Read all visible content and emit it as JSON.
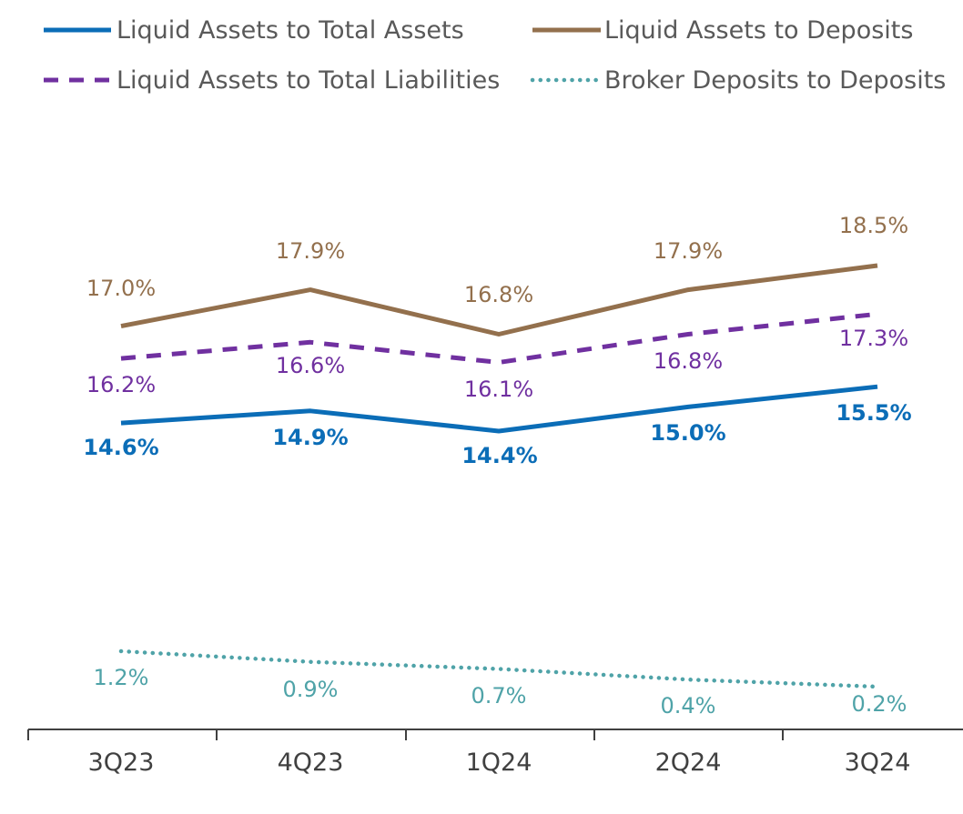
{
  "chart_data": {
    "type": "line",
    "categories": [
      "3Q23",
      "4Q23",
      "1Q24",
      "2Q24",
      "3Q24"
    ],
    "series": [
      {
        "name": "Liquid Assets to Total Assets",
        "values": [
          14.6,
          14.9,
          14.4,
          15.0,
          15.5
        ],
        "labels": [
          "14.6%",
          "14.9%",
          "14.4%",
          "15.0%",
          "15.5%"
        ],
        "color": "#0b6db7",
        "line_style": "solid",
        "label_weight": "bold"
      },
      {
        "name": "Liquid Assets to Deposits",
        "values": [
          17.0,
          17.9,
          16.8,
          17.9,
          18.5
        ],
        "labels": [
          "17.0%",
          "17.9%",
          "16.8%",
          "17.9%",
          "18.5%"
        ],
        "color": "#93704d",
        "line_style": "solid",
        "label_weight": "normal"
      },
      {
        "name": "Liquid Assets to Total Liabilities",
        "values": [
          16.2,
          16.6,
          16.1,
          16.8,
          17.3
        ],
        "labels": [
          "16.2%",
          "16.6%",
          "16.1%",
          "16.8%",
          "17.3%"
        ],
        "color": "#7030a0",
        "line_style": "dashed",
        "label_weight": "normal"
      },
      {
        "name": "Broker Deposits to Deposits",
        "values": [
          1.2,
          0.9,
          0.7,
          0.4,
          0.2
        ],
        "labels": [
          "1.2%",
          "0.9%",
          "0.7%",
          "0.4%",
          "0.2%"
        ],
        "color": "#4fa3a8",
        "line_style": "dotted",
        "label_weight": "normal"
      }
    ],
    "legend_position": "top",
    "grid": false,
    "y_axis_visible": false
  }
}
